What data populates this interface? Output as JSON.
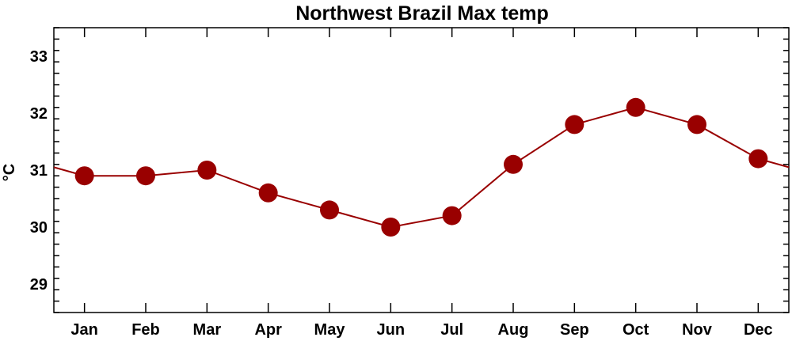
{
  "chart_data": {
    "type": "line",
    "title": "Northwest Brazil Max temp",
    "xlabel": "",
    "ylabel": "°C",
    "categories": [
      "Jan",
      "Feb",
      "Mar",
      "Apr",
      "May",
      "Jun",
      "Jul",
      "Aug",
      "Sep",
      "Oct",
      "Nov",
      "Dec"
    ],
    "series": [
      {
        "values": [
          30.9,
          30.9,
          31.0,
          30.6,
          30.3,
          30.0,
          30.2,
          31.1,
          31.8,
          32.1,
          31.8,
          31.2
        ]
      }
    ],
    "ylim": [
      28.5,
      33.5
    ],
    "yticks": [
      29,
      30,
      31,
      32,
      33
    ],
    "ytick_labels": [
      "29",
      "30",
      "31",
      "32",
      "33"
    ],
    "y_minor_step": 0.2,
    "grid": false,
    "legend": "none",
    "wraps_around": true,
    "colors": {
      "line": "#990000",
      "marker": "#990000",
      "axis": "#000000",
      "background": "#ffffff"
    }
  }
}
